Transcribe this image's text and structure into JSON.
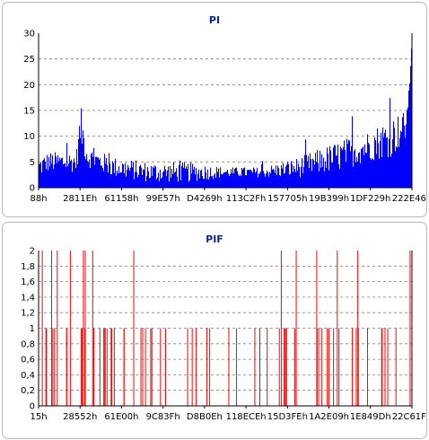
{
  "chart_data": [
    {
      "type": "bar",
      "title": "PI",
      "color": "#0000ff",
      "ylim": [
        0,
        30
      ],
      "yticks": [
        "0",
        "5",
        "10",
        "15",
        "20",
        "25",
        "30"
      ],
      "xticks": [
        "88h",
        "2811Eh",
        "61158h",
        "99E57h",
        "D4269h",
        "113C2Fh",
        "157705h",
        "19B399h",
        "1DF229h",
        "222E46h"
      ],
      "grid": true,
      "profile": [
        [
          0,
          4,
          2
        ],
        [
          0.025,
          5,
          2
        ],
        [
          0.06,
          5,
          2
        ],
        [
          0.1,
          5,
          2
        ],
        [
          0.112,
          12,
          4
        ],
        [
          0.13,
          6,
          2
        ],
        [
          0.2,
          4,
          2
        ],
        [
          0.3,
          3,
          2
        ],
        [
          0.4,
          3,
          2
        ],
        [
          0.5,
          3,
          1
        ],
        [
          0.6,
          3,
          1
        ],
        [
          0.7,
          4,
          2
        ],
        [
          0.8,
          6,
          3
        ],
        [
          0.88,
          8,
          3
        ],
        [
          0.95,
          10,
          4
        ],
        [
          0.985,
          12,
          3
        ],
        [
          0.995,
          20,
          0
        ],
        [
          1,
          27,
          0
        ]
      ]
    },
    {
      "type": "bar",
      "title": "PIF",
      "color": "#ff0000",
      "ylim": [
        0,
        2
      ],
      "yticks": [
        "0",
        "0,2",
        "0,4",
        "0,6",
        "0,8",
        "1",
        "1,2",
        "1,4",
        "1,6",
        "1,8",
        "2"
      ],
      "xticks": [
        "15h",
        "28552h",
        "61E00h",
        "9C83Fh",
        "D8B0Eh",
        "118ECEh",
        "15D3FEh",
        "1A2E09h",
        "1E849Dh",
        "22C61Fh"
      ],
      "grid": true,
      "values_at_2": [
        0.01,
        0.035,
        0.05,
        0.085,
        0.12,
        0.125,
        0.145,
        0.255,
        0.65,
        0.69,
        0.745,
        0.8,
        0.855,
        0.995
      ],
      "density": 0.6
    }
  ]
}
